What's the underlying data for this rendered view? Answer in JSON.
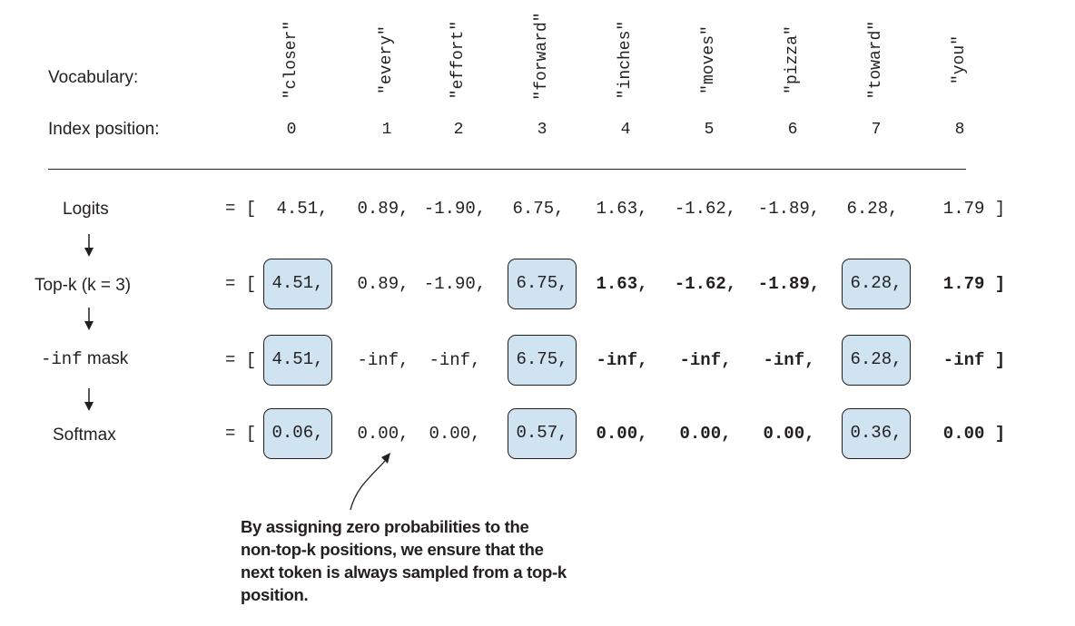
{
  "labels": {
    "vocabulary": "Vocabulary:",
    "index_position": "Index position:",
    "logits": "Logits",
    "topk": "Top-k (k = 3)",
    "mask_code": "-inf",
    "mask_text": " mask",
    "softmax": "Softmax"
  },
  "vocabulary": [
    "\"closer\"",
    "\"every\"",
    "\"effort\"",
    "\"forward\"",
    "\"inches\"",
    "\"moves\"",
    "\"pizza\"",
    "\"toward\"",
    "\"you\""
  ],
  "indices": [
    "0",
    "1",
    "2",
    "3",
    "4",
    "5",
    "6",
    "7",
    "8"
  ],
  "rows": {
    "logits": {
      "prefix": "= [",
      "values": [
        "4.51,",
        "0.89,",
        "-1.90,",
        "6.75,",
        "1.63,",
        "-1.62,",
        "-1.89,",
        "6.28,",
        "1.79 ]"
      ]
    },
    "topk": {
      "prefix": "= [",
      "values": [
        "4.51,",
        "0.89,",
        "-1.90,",
        "6.75,",
        "1.63,",
        "-1.62,",
        "-1.89,",
        "6.28,",
        "1.79 ]"
      ]
    },
    "mask": {
      "prefix": "= [",
      "values": [
        "4.51,",
        "-inf,",
        "-inf,",
        "6.75,",
        "-inf,",
        "-inf,",
        "-inf,",
        "6.28,",
        "-inf ]"
      ]
    },
    "softmax": {
      "prefix": "= [",
      "values": [
        "0.06,",
        "0.00,",
        "0.00,",
        "0.57,",
        "0.00,",
        "0.00,",
        "0.00,",
        "0.36,",
        "0.00 ]"
      ]
    }
  },
  "highlighted_indices": [
    0,
    3,
    7
  ],
  "highlight_color": "#cfe3f0",
  "annotation": "By assigning zero probabilities to the non-top-k positions, we ensure that the next token is always sampled from a top-k position."
}
